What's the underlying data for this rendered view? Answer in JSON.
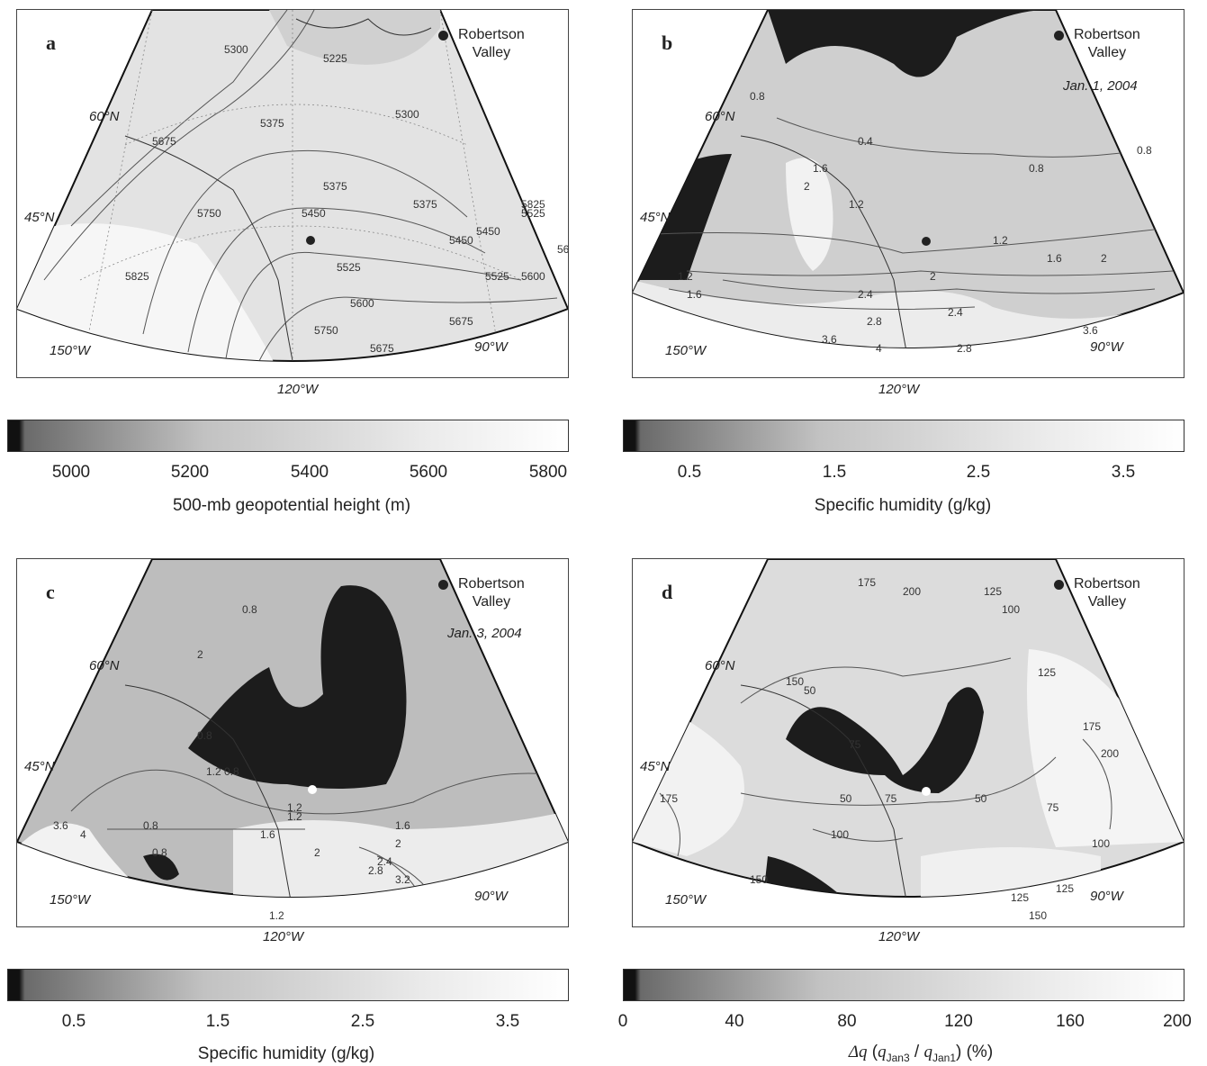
{
  "panels": [
    {
      "letter": "a",
      "legend": {
        "name": "Robertson",
        "name2": "Valley"
      },
      "date": "",
      "lat_labels": [
        "60°N",
        "45°N"
      ],
      "lon_labels": [
        "150°W",
        "120°W",
        "90°W"
      ],
      "contour_labels": [
        "5225",
        "5300",
        "5375",
        "5450",
        "5525",
        "5600",
        "5675",
        "5750",
        "5825",
        "5300",
        "5375",
        "5450",
        "5525",
        "5600",
        "5675",
        "5750",
        "5825",
        "5675",
        "5375",
        "5450",
        "5525",
        "5600"
      ],
      "dot_color": "#222222"
    },
    {
      "letter": "b",
      "legend": {
        "name": "Robertson",
        "name2": "Valley"
      },
      "date": "Jan. 1, 2004",
      "lat_labels": [
        "60°N",
        "45°N"
      ],
      "lon_labels": [
        "150°W",
        "120°W",
        "90°W"
      ],
      "contour_labels": [
        "0.8",
        "0.4",
        "0.8",
        "0.8",
        "1.2",
        "1.6",
        "2",
        "1.2",
        "1.6",
        "2",
        "2.4",
        "2.8",
        "3.6",
        "1.2",
        "1.6",
        "2",
        "2.4",
        "2.8",
        "3.6",
        "4"
      ],
      "dot_color": "#222222"
    },
    {
      "letter": "c",
      "legend": {
        "name": "Robertson",
        "name2": "Valley"
      },
      "date": "Jan. 3, 2004",
      "lat_labels": [
        "60°N",
        "45°N"
      ],
      "lon_labels": [
        "150°W",
        "120°W",
        "90°W"
      ],
      "contour_labels": [
        "2",
        "0.8",
        "0.8",
        "1.2",
        "0.8",
        "1.2",
        "1.6",
        "2",
        "2.4",
        "2.8",
        "3.2",
        "0.8",
        "1.2",
        "1.6",
        "2",
        "1.2",
        "0.8",
        "3.6",
        "4"
      ],
      "dot_color": "#ffffff"
    },
    {
      "letter": "d",
      "legend": {
        "name": "Robertson",
        "name2": "Valley"
      },
      "date": "",
      "lat_labels": [
        "60°N",
        "45°N"
      ],
      "lon_labels": [
        "150°W",
        "120°W",
        "90°W"
      ],
      "contour_labels": [
        "175",
        "200",
        "125",
        "100",
        "125",
        "150",
        "50",
        "75",
        "50",
        "75",
        "100",
        "125",
        "150",
        "175",
        "50",
        "75",
        "100",
        "125",
        "150",
        "175",
        "200"
      ],
      "dot_color": "#ffffff"
    }
  ],
  "colorbars": [
    {
      "ticks": [
        "5000",
        "5200",
        "5400",
        "5600",
        "5800"
      ],
      "title": "500-mb geopotential height (m)"
    },
    {
      "ticks": [
        "0.5",
        "1.5",
        "2.5",
        "3.5"
      ],
      "title": "Specific humidity (g/kg)"
    },
    {
      "ticks": [
        "0.5",
        "1.5",
        "2.5",
        "3.5"
      ],
      "title": "Specific humidity (g/kg)"
    },
    {
      "ticks": [
        "0",
        "40",
        "80",
        "120",
        "160",
        "200"
      ],
      "title_symbol": "Δq",
      "title_num": "q",
      "title_num_sub": "Jan3",
      "title_den": "q",
      "title_den_sub": "Jan1",
      "title_unit": "(%)"
    }
  ]
}
